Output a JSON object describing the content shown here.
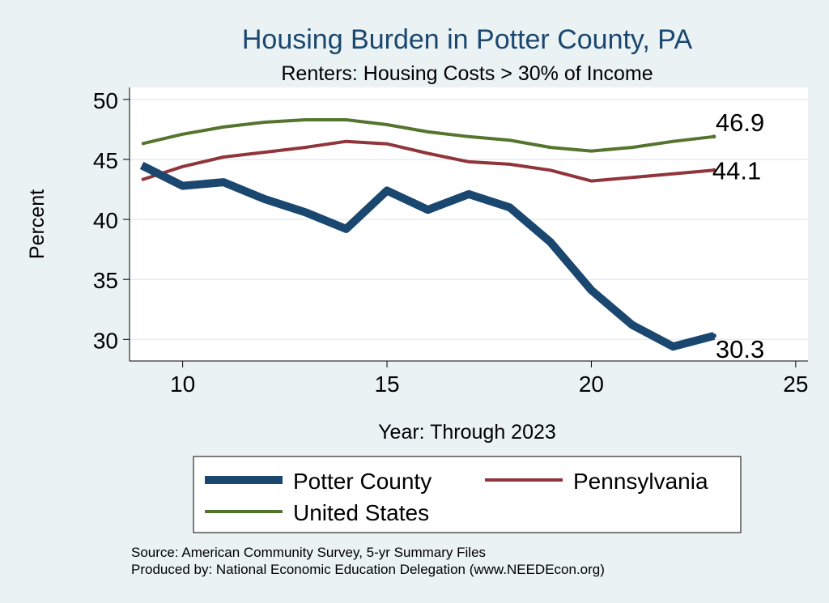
{
  "chart_data": {
    "type": "line",
    "title": "Housing Burden in Potter County, PA",
    "subtitle": "Renters: Housing Costs > 30% of Income",
    "xlabel": "Year: Through 2023",
    "ylabel": "Percent",
    "xlim": [
      8.7,
      25.3
    ],
    "ylim": [
      28.2,
      51.0
    ],
    "xticks": [
      10,
      15,
      20,
      25
    ],
    "yticks": [
      30,
      35,
      40,
      45,
      50
    ],
    "grid": true,
    "legend_position": "bottom",
    "x": [
      9,
      10,
      11,
      12,
      13,
      14,
      15,
      16,
      17,
      18,
      19,
      20,
      21,
      22,
      23
    ],
    "series": [
      {
        "name": "Potter County",
        "color": "#1a476f",
        "values": [
          44.5,
          42.8,
          43.1,
          41.7,
          40.6,
          39.2,
          42.4,
          40.8,
          42.1,
          41.0,
          38.1,
          34.1,
          31.2,
          29.4,
          30.3
        ],
        "end_label": "30.3"
      },
      {
        "name": "Pennsylvania",
        "color": "#90353b",
        "values": [
          43.3,
          44.4,
          45.2,
          45.6,
          46.0,
          46.5,
          46.3,
          45.5,
          44.8,
          44.6,
          44.1,
          43.2,
          43.5,
          43.8,
          44.1
        ],
        "end_label": "44.1"
      },
      {
        "name": "United States",
        "color": "#55752f",
        "values": [
          46.3,
          47.1,
          47.7,
          48.1,
          48.3,
          48.3,
          47.9,
          47.3,
          46.9,
          46.6,
          46.0,
          45.7,
          46.0,
          46.5,
          46.9
        ],
        "end_label": "46.9"
      }
    ],
    "legend": [
      "Potter County",
      "Pennsylvania",
      "United States"
    ]
  },
  "footer": {
    "source": "Source: American Community Survey, 5-yr Summary Files",
    "produced": "Produced by: National Economic Education Delegation (www.NEEDEcon.org)"
  }
}
